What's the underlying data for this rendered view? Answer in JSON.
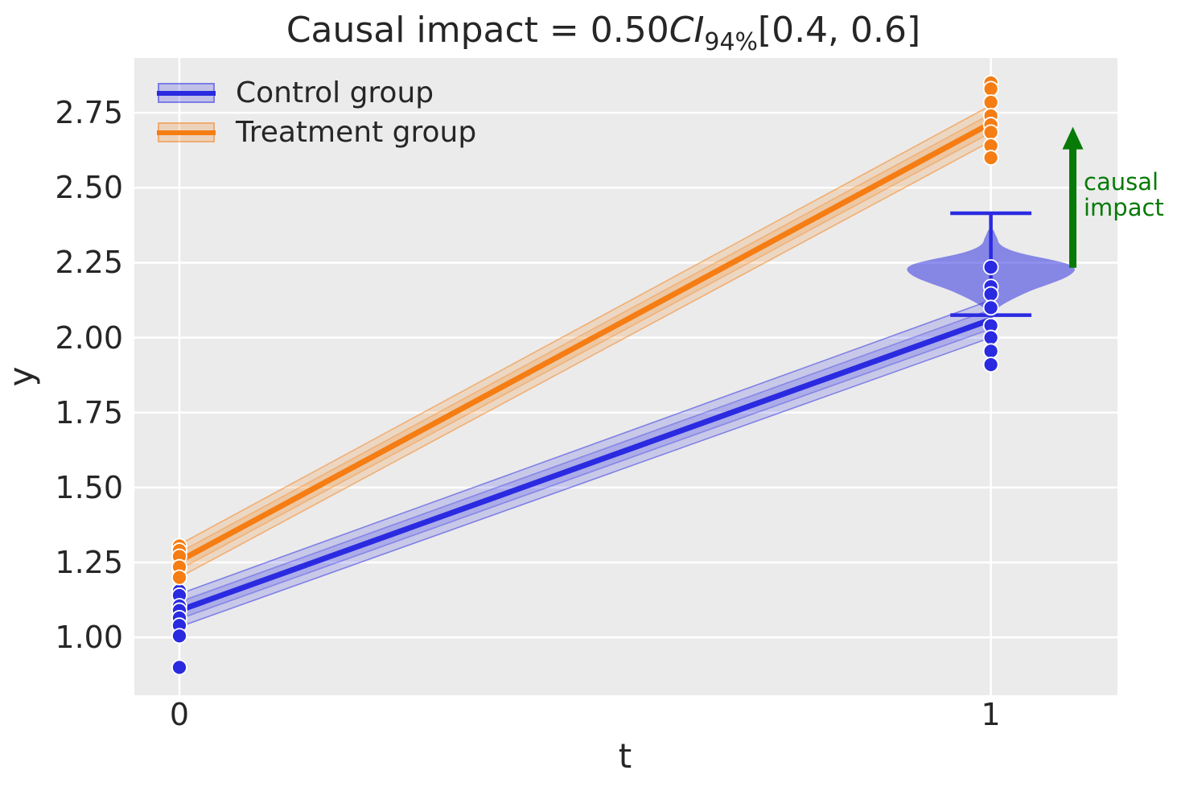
{
  "title": {
    "prefix": "Causal impact = 0.50",
    "ci_term": "CI",
    "ci_subscript": "94%",
    "suffix": "[0.4, 0.6]"
  },
  "axes": {
    "xlabel": "t",
    "ylabel": "y",
    "x_ticks": [
      {
        "v": 0,
        "label": "0"
      },
      {
        "v": 1,
        "label": "1"
      }
    ],
    "y_ticks": [
      {
        "v": 1.0,
        "label": "1.00"
      },
      {
        "v": 1.25,
        "label": "1.25"
      },
      {
        "v": 1.5,
        "label": "1.50"
      },
      {
        "v": 1.75,
        "label": "1.75"
      },
      {
        "v": 2.0,
        "label": "2.00"
      },
      {
        "v": 2.25,
        "label": "2.25"
      },
      {
        "v": 2.5,
        "label": "2.50"
      },
      {
        "v": 2.75,
        "label": "2.75"
      }
    ]
  },
  "legend": {
    "items": [
      {
        "label": "Control group",
        "line_color": "#2a2ae1",
        "band_fill": "rgba(42,42,225,0.22)",
        "band_border": "rgba(42,42,225,0.45)"
      },
      {
        "label": "Treatment group",
        "line_color": "#f57d13",
        "band_fill": "rgba(245,125,19,0.22)",
        "band_border": "rgba(245,125,19,0.45)"
      }
    ]
  },
  "annotation": {
    "lines": [
      "causal",
      "impact"
    ],
    "color": "#077a07"
  },
  "colors": {
    "plot_bg": "#ebebeb",
    "grid": "#ffffff",
    "control": "#2a2ae1",
    "treatment": "#f57d13",
    "arrow_green": "#077a07",
    "text": "#262626"
  },
  "chart_data": {
    "type": "line",
    "title": "Causal impact = 0.50 CI 94% [0.4, 0.6]",
    "xlabel": "t",
    "ylabel": "y",
    "xlim": [
      -0.0555,
      1.156
    ],
    "ylim": [
      0.807,
      2.933
    ],
    "grid": true,
    "legend_position": "upper left",
    "series": [
      {
        "name": "Control group",
        "color": "#2a2ae1",
        "x": [
          0,
          1
        ],
        "mean": [
          1.09,
          2.06
        ],
        "ci_lower": [
          1.035,
          2.0
        ],
        "ci_upper": [
          1.145,
          2.125
        ]
      },
      {
        "name": "Treatment group",
        "color": "#f57d13",
        "x": [
          0,
          1
        ],
        "mean": [
          1.255,
          2.715
        ],
        "ci_lower": [
          1.2,
          2.655
        ],
        "ci_upper": [
          1.31,
          2.775
        ]
      }
    ],
    "scatter": [
      {
        "name": "control-t0",
        "group": "Control group",
        "color": "#2a2ae1",
        "t": 0,
        "y": [
          1.23,
          1.155,
          1.14,
          1.105,
          1.09,
          1.065,
          1.04,
          1.005,
          0.9
        ]
      },
      {
        "name": "treatment-t0",
        "group": "Treatment group",
        "color": "#f57d13",
        "t": 0,
        "y": [
          1.305,
          1.29,
          1.27,
          1.235,
          1.2
        ]
      },
      {
        "name": "control-t1",
        "group": "Control group",
        "color": "#2a2ae1",
        "t": 1,
        "y": [
          2.235,
          2.17,
          2.145,
          2.1,
          2.04,
          2.0,
          1.955,
          1.91
        ]
      },
      {
        "name": "treatment-t1",
        "group": "Treatment group",
        "color": "#f57d13",
        "t": 1,
        "y": [
          2.85,
          2.83,
          2.785,
          2.74,
          2.71,
          2.685,
          2.64,
          2.6
        ]
      }
    ],
    "violin": {
      "label": "counterfactual posterior",
      "color": "#2a2ae1",
      "x": 1,
      "whisker_low": 2.075,
      "whisker_high": 2.415,
      "cap_half_width": 0.05,
      "max_half_width": 0.104,
      "profile": [
        [
          2.078,
          0.02
        ],
        [
          2.09,
          0.05
        ],
        [
          2.105,
          0.11
        ],
        [
          2.12,
          0.2
        ],
        [
          2.14,
          0.34
        ],
        [
          2.16,
          0.5
        ],
        [
          2.18,
          0.71
        ],
        [
          2.2,
          0.89
        ],
        [
          2.218,
          0.985
        ],
        [
          2.232,
          1.0
        ],
        [
          2.245,
          0.93
        ],
        [
          2.26,
          0.72
        ],
        [
          2.272,
          0.5
        ],
        [
          2.285,
          0.3
        ],
        [
          2.3,
          0.16
        ],
        [
          2.315,
          0.09
        ],
        [
          2.33,
          0.08
        ],
        [
          2.345,
          0.05
        ],
        [
          2.362,
          0.03
        ]
      ]
    },
    "annotation_arrow": {
      "x": 1.101,
      "y_from": 2.233,
      "y_to": 2.703,
      "color": "#077a07",
      "label": "causal impact"
    }
  }
}
